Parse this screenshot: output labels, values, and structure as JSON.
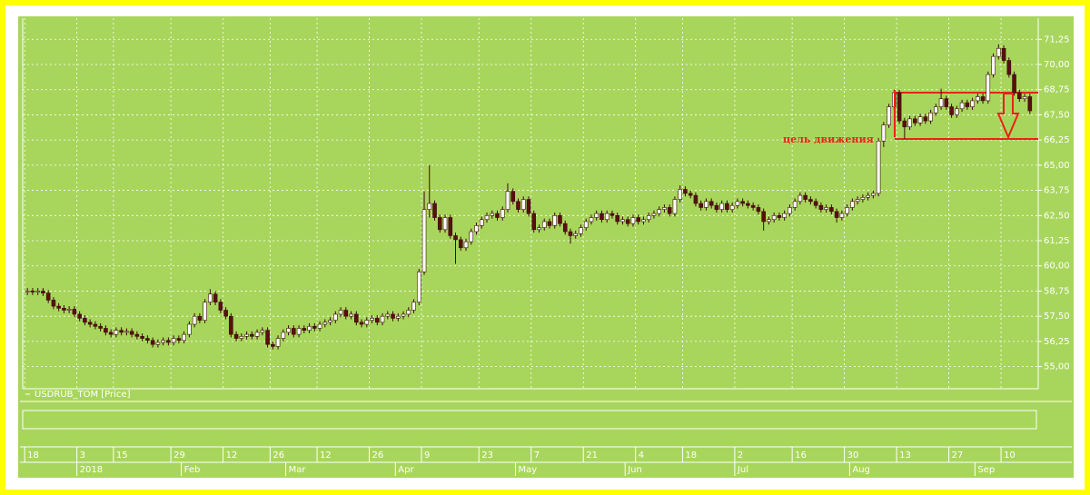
{
  "chart_data": {
    "type": "candlestick",
    "series_label": "USDRUB_TOM [Price]",
    "up_color": "#ffffff",
    "down_color": "#5a0f0f",
    "grid": true,
    "ylim": [
      53.9,
      72.3
    ],
    "yticks": [
      {
        "value": 55,
        "label": "55,00"
      },
      {
        "value": 56.25,
        "label": "56,25"
      },
      {
        "value": 57.5,
        "label": "57,50"
      },
      {
        "value": 58.75,
        "label": "58,75"
      },
      {
        "value": 60,
        "label": "60,00"
      },
      {
        "value": 61.25,
        "label": "61,25"
      },
      {
        "value": 62.5,
        "label": "62,50"
      },
      {
        "value": 63.75,
        "label": "63,75"
      },
      {
        "value": 65,
        "label": "65,00"
      },
      {
        "value": 66.25,
        "label": "66,25"
      },
      {
        "value": 67.5,
        "label": "67,50"
      },
      {
        "value": 68.75,
        "label": "68,75"
      },
      {
        "value": 70,
        "label": "70,00"
      },
      {
        "value": 71.25,
        "label": "71,25"
      }
    ],
    "xlim": [
      -0.9,
      193.6
    ],
    "xticks": [
      {
        "value": 0,
        "label": "18"
      },
      {
        "value": 10,
        "label": "3"
      },
      {
        "value": 17,
        "label": "15"
      },
      {
        "value": 28,
        "label": "29"
      },
      {
        "value": 38,
        "label": "12"
      },
      {
        "value": 47,
        "label": "26"
      },
      {
        "value": 56,
        "label": "12"
      },
      {
        "value": 66,
        "label": "26"
      },
      {
        "value": 76,
        "label": "9"
      },
      {
        "value": 87,
        "label": "23"
      },
      {
        "value": 97,
        "label": "7"
      },
      {
        "value": 107,
        "label": "21"
      },
      {
        "value": 117,
        "label": "4"
      },
      {
        "value": 126,
        "label": "18"
      },
      {
        "value": 136,
        "label": "2"
      },
      {
        "value": 147,
        "label": "16"
      },
      {
        "value": 157,
        "label": "30"
      },
      {
        "value": 167,
        "label": "13"
      },
      {
        "value": 177,
        "label": "27"
      },
      {
        "value": 187,
        "label": "10"
      }
    ],
    "month_ticks": [
      {
        "value": 10,
        "label": "2018"
      },
      {
        "value": 30,
        "label": "Feb"
      },
      {
        "value": 50,
        "label": "Mar"
      },
      {
        "value": 71,
        "label": "Apr"
      },
      {
        "value": 94,
        "label": "May"
      },
      {
        "value": 115,
        "label": "Jun"
      },
      {
        "value": 136,
        "label": "Jul"
      },
      {
        "value": 158,
        "label": "Aug"
      },
      {
        "value": 182,
        "label": "Sep"
      }
    ],
    "annotation": {
      "text": "цель движения",
      "levels": [
        68.6,
        66.3
      ]
    },
    "candles": [
      [
        58.7,
        58.9,
        58.55,
        58.75
      ],
      [
        58.75,
        58.9,
        58.55,
        58.7
      ],
      [
        58.7,
        58.9,
        58.55,
        58.75
      ],
      [
        58.75,
        58.9,
        58.5,
        58.65
      ],
      [
        58.65,
        58.8,
        58.15,
        58.3
      ],
      [
        58.3,
        58.45,
        57.85,
        58.0
      ],
      [
        58.0,
        58.15,
        57.75,
        57.9
      ],
      [
        57.9,
        58.05,
        57.65,
        57.8
      ],
      [
        57.8,
        58.0,
        57.65,
        57.85
      ],
      [
        57.85,
        58.0,
        57.45,
        57.6
      ],
      [
        57.6,
        57.75,
        57.25,
        57.4
      ],
      [
        57.4,
        57.55,
        57.05,
        57.2
      ],
      [
        57.2,
        57.35,
        56.95,
        57.1
      ],
      [
        57.1,
        57.25,
        56.85,
        57.0
      ],
      [
        57.0,
        57.15,
        56.75,
        56.9
      ],
      [
        56.9,
        57.05,
        56.55,
        56.7
      ],
      [
        56.7,
        56.85,
        56.45,
        56.6
      ],
      [
        56.6,
        56.95,
        56.45,
        56.8
      ],
      [
        56.8,
        56.95,
        56.55,
        56.7
      ],
      [
        56.7,
        56.9,
        56.55,
        56.75
      ],
      [
        56.75,
        56.9,
        56.45,
        56.6
      ],
      [
        56.6,
        56.75,
        56.35,
        56.5
      ],
      [
        56.5,
        56.65,
        56.25,
        56.4
      ],
      [
        56.4,
        56.55,
        56.15,
        56.3
      ],
      [
        56.3,
        56.45,
        55.95,
        56.1
      ],
      [
        56.1,
        56.35,
        55.95,
        56.2
      ],
      [
        56.2,
        56.45,
        56.05,
        56.3
      ],
      [
        56.3,
        56.45,
        56.05,
        56.2
      ],
      [
        56.2,
        56.55,
        56.05,
        56.4
      ],
      [
        56.4,
        56.55,
        56.15,
        56.3
      ],
      [
        56.3,
        56.75,
        56.15,
        56.6
      ],
      [
        56.6,
        57.25,
        56.45,
        57.1
      ],
      [
        57.1,
        57.65,
        56.95,
        57.5
      ],
      [
        57.5,
        57.65,
        57.15,
        57.3
      ],
      [
        57.3,
        58.35,
        57.15,
        58.2
      ],
      [
        58.2,
        58.85,
        58.05,
        58.6
      ],
      [
        58.6,
        58.75,
        58.05,
        58.2
      ],
      [
        58.2,
        58.35,
        57.65,
        57.8
      ],
      [
        57.8,
        57.95,
        57.35,
        57.5
      ],
      [
        57.5,
        57.65,
        56.45,
        56.6
      ],
      [
        56.6,
        56.75,
        56.25,
        56.4
      ],
      [
        56.4,
        56.65,
        56.25,
        56.5
      ],
      [
        56.5,
        56.75,
        56.35,
        56.6
      ],
      [
        56.6,
        56.75,
        56.35,
        56.5
      ],
      [
        56.5,
        56.85,
        56.35,
        56.7
      ],
      [
        56.7,
        56.95,
        56.55,
        56.8
      ],
      [
        56.8,
        56.95,
        55.95,
        56.1
      ],
      [
        56.1,
        56.25,
        55.85,
        56.0
      ],
      [
        56.0,
        56.55,
        55.85,
        56.4
      ],
      [
        56.4,
        56.85,
        56.25,
        56.7
      ],
      [
        56.7,
        57.05,
        56.55,
        56.9
      ],
      [
        56.9,
        57.05,
        56.45,
        56.6
      ],
      [
        56.6,
        57.05,
        56.45,
        56.9
      ],
      [
        56.9,
        57.05,
        56.65,
        56.8
      ],
      [
        56.8,
        57.15,
        56.65,
        57.0
      ],
      [
        57.0,
        57.15,
        56.75,
        56.9
      ],
      [
        56.9,
        57.25,
        56.75,
        57.1
      ],
      [
        57.1,
        57.35,
        56.95,
        57.2
      ],
      [
        57.2,
        57.45,
        57.05,
        57.3
      ],
      [
        57.3,
        57.75,
        57.15,
        57.6
      ],
      [
        57.6,
        57.95,
        57.45,
        57.8
      ],
      [
        57.8,
        57.95,
        57.35,
        57.5
      ],
      [
        57.5,
        57.75,
        57.35,
        57.6
      ],
      [
        57.6,
        57.75,
        57.05,
        57.2
      ],
      [
        57.2,
        57.35,
        56.95,
        57.1
      ],
      [
        57.1,
        57.45,
        56.95,
        57.3
      ],
      [
        57.3,
        57.55,
        57.15,
        57.4
      ],
      [
        57.4,
        57.55,
        57.05,
        57.2
      ],
      [
        57.2,
        57.65,
        57.05,
        57.5
      ],
      [
        57.5,
        57.75,
        57.35,
        57.6
      ],
      [
        57.6,
        57.75,
        57.25,
        57.4
      ],
      [
        57.4,
        57.65,
        57.25,
        57.5
      ],
      [
        57.5,
        57.75,
        57.35,
        57.6
      ],
      [
        57.6,
        57.95,
        57.45,
        57.8
      ],
      [
        57.8,
        58.35,
        57.65,
        58.2
      ],
      [
        58.2,
        59.85,
        58.05,
        59.7
      ],
      [
        59.7,
        63.7,
        59.55,
        62.8
      ],
      [
        62.8,
        65.0,
        62.4,
        63.1
      ],
      [
        63.1,
        63.25,
        62.25,
        62.4
      ],
      [
        62.4,
        62.55,
        61.65,
        61.8
      ],
      [
        61.8,
        62.55,
        61.65,
        62.4
      ],
      [
        62.4,
        62.55,
        61.35,
        61.5
      ],
      [
        61.5,
        61.65,
        60.1,
        61.3
      ],
      [
        61.3,
        61.45,
        60.75,
        60.9
      ],
      [
        60.9,
        61.35,
        60.75,
        61.2
      ],
      [
        61.2,
        61.85,
        61.05,
        61.7
      ],
      [
        61.7,
        62.15,
        61.55,
        62.0
      ],
      [
        62.0,
        62.45,
        61.85,
        62.3
      ],
      [
        62.3,
        62.65,
        62.15,
        62.5
      ],
      [
        62.5,
        62.75,
        62.35,
        62.6
      ],
      [
        62.6,
        62.75,
        62.25,
        62.4
      ],
      [
        62.4,
        62.95,
        62.25,
        62.8
      ],
      [
        62.8,
        64.1,
        62.65,
        63.7
      ],
      [
        63.7,
        63.85,
        63.05,
        63.2
      ],
      [
        63.2,
        63.35,
        62.65,
        62.8
      ],
      [
        62.8,
        63.45,
        62.65,
        63.3
      ],
      [
        63.3,
        63.45,
        62.45,
        62.6
      ],
      [
        62.6,
        62.75,
        61.65,
        61.8
      ],
      [
        61.8,
        62.05,
        61.65,
        61.9
      ],
      [
        61.9,
        62.35,
        61.75,
        62.2
      ],
      [
        62.2,
        62.35,
        61.85,
        62.0
      ],
      [
        62.0,
        62.65,
        61.85,
        62.5
      ],
      [
        62.5,
        62.65,
        61.95,
        62.1
      ],
      [
        62.1,
        62.25,
        61.55,
        61.7
      ],
      [
        61.7,
        61.85,
        61.1,
        61.5
      ],
      [
        61.5,
        61.75,
        61.35,
        61.6
      ],
      [
        61.6,
        62.05,
        61.45,
        61.9
      ],
      [
        61.9,
        62.35,
        61.75,
        62.2
      ],
      [
        62.2,
        62.55,
        62.05,
        62.4
      ],
      [
        62.4,
        62.75,
        62.25,
        62.6
      ],
      [
        62.6,
        62.75,
        62.15,
        62.3
      ],
      [
        62.3,
        62.75,
        62.15,
        62.6
      ],
      [
        62.6,
        62.75,
        62.35,
        62.5
      ],
      [
        62.5,
        62.65,
        62.05,
        62.2
      ],
      [
        62.2,
        62.45,
        62.05,
        62.3
      ],
      [
        62.3,
        62.45,
        61.95,
        62.1
      ],
      [
        62.1,
        62.55,
        61.95,
        62.4
      ],
      [
        62.4,
        62.55,
        62.05,
        62.2
      ],
      [
        62.2,
        62.45,
        62.05,
        62.3
      ],
      [
        62.3,
        62.65,
        62.15,
        62.5
      ],
      [
        62.5,
        62.75,
        62.35,
        62.6
      ],
      [
        62.6,
        62.95,
        62.45,
        62.8
      ],
      [
        62.8,
        63.05,
        62.65,
        62.9
      ],
      [
        62.9,
        63.05,
        62.45,
        62.6
      ],
      [
        62.6,
        63.45,
        62.45,
        63.3
      ],
      [
        63.3,
        64.0,
        63.15,
        63.8
      ],
      [
        63.8,
        63.95,
        63.45,
        63.6
      ],
      [
        63.6,
        63.75,
        63.35,
        63.5
      ],
      [
        63.5,
        63.65,
        62.95,
        63.1
      ],
      [
        63.1,
        63.25,
        62.75,
        62.9
      ],
      [
        62.9,
        63.35,
        62.75,
        63.2
      ],
      [
        63.2,
        63.35,
        62.85,
        63.0
      ],
      [
        63.0,
        63.15,
        62.65,
        62.8
      ],
      [
        62.8,
        63.25,
        62.65,
        63.1
      ],
      [
        63.1,
        63.25,
        62.65,
        62.8
      ],
      [
        62.8,
        63.15,
        62.65,
        63.0
      ],
      [
        63.0,
        63.35,
        62.85,
        63.2
      ],
      [
        63.2,
        63.35,
        62.95,
        63.1
      ],
      [
        63.1,
        63.25,
        62.85,
        63.0
      ],
      [
        63.0,
        63.15,
        62.75,
        62.9
      ],
      [
        62.9,
        63.05,
        62.55,
        62.7
      ],
      [
        62.7,
        62.85,
        61.75,
        62.2
      ],
      [
        62.2,
        62.45,
        62.05,
        62.3
      ],
      [
        62.3,
        62.65,
        62.15,
        62.5
      ],
      [
        62.5,
        62.65,
        62.25,
        62.4
      ],
      [
        62.4,
        62.75,
        62.25,
        62.6
      ],
      [
        62.6,
        63.05,
        62.45,
        62.9
      ],
      [
        62.9,
        63.35,
        62.75,
        63.2
      ],
      [
        63.2,
        63.65,
        63.05,
        63.5
      ],
      [
        63.5,
        63.65,
        63.15,
        63.3
      ],
      [
        63.3,
        63.45,
        63.05,
        63.2
      ],
      [
        63.2,
        63.35,
        62.85,
        63.0
      ],
      [
        63.0,
        63.15,
        62.65,
        62.8
      ],
      [
        62.8,
        63.05,
        62.65,
        62.9
      ],
      [
        62.9,
        63.05,
        62.55,
        62.7
      ],
      [
        62.7,
        62.85,
        62.15,
        62.4
      ],
      [
        62.4,
        62.75,
        62.25,
        62.6
      ],
      [
        62.6,
        63.05,
        62.45,
        62.9
      ],
      [
        62.9,
        63.35,
        62.75,
        63.2
      ],
      [
        63.2,
        63.45,
        63.05,
        63.3
      ],
      [
        63.3,
        63.55,
        63.15,
        63.4
      ],
      [
        63.4,
        63.65,
        63.25,
        63.5
      ],
      [
        63.5,
        63.75,
        63.35,
        63.6
      ],
      [
        63.6,
        66.35,
        63.45,
        66.2
      ],
      [
        66.2,
        67.15,
        65.9,
        67.0
      ],
      [
        67.0,
        68.05,
        66.85,
        67.9
      ],
      [
        67.9,
        68.75,
        67.75,
        68.6
      ],
      [
        68.6,
        68.75,
        67.05,
        67.2
      ],
      [
        67.2,
        67.35,
        66.3,
        66.9
      ],
      [
        66.9,
        67.45,
        66.75,
        67.3
      ],
      [
        67.3,
        67.45,
        66.95,
        67.1
      ],
      [
        67.1,
        67.55,
        66.95,
        67.4
      ],
      [
        67.4,
        67.55,
        67.05,
        67.2
      ],
      [
        67.2,
        67.75,
        67.05,
        67.6
      ],
      [
        67.6,
        68.05,
        67.45,
        67.9
      ],
      [
        67.9,
        68.8,
        67.75,
        68.3
      ],
      [
        68.3,
        68.45,
        67.75,
        67.9
      ],
      [
        67.9,
        68.05,
        67.35,
        67.5
      ],
      [
        67.5,
        67.95,
        67.35,
        67.8
      ],
      [
        67.8,
        68.25,
        67.65,
        68.1
      ],
      [
        68.1,
        68.25,
        67.75,
        67.9
      ],
      [
        67.9,
        68.35,
        67.75,
        68.2
      ],
      [
        68.2,
        68.55,
        68.05,
        68.4
      ],
      [
        68.4,
        68.55,
        68.05,
        68.2
      ],
      [
        68.2,
        69.65,
        68.05,
        69.5
      ],
      [
        69.5,
        70.55,
        69.35,
        70.4
      ],
      [
        70.4,
        71.0,
        70.25,
        70.8
      ],
      [
        70.8,
        70.95,
        70.05,
        70.2
      ],
      [
        70.2,
        70.35,
        69.35,
        69.5
      ],
      [
        69.5,
        69.65,
        68.45,
        68.6
      ],
      [
        68.6,
        68.75,
        68.15,
        68.3
      ],
      [
        68.3,
        68.55,
        68.15,
        68.4
      ],
      [
        68.4,
        68.55,
        67.55,
        67.7
      ]
    ]
  }
}
